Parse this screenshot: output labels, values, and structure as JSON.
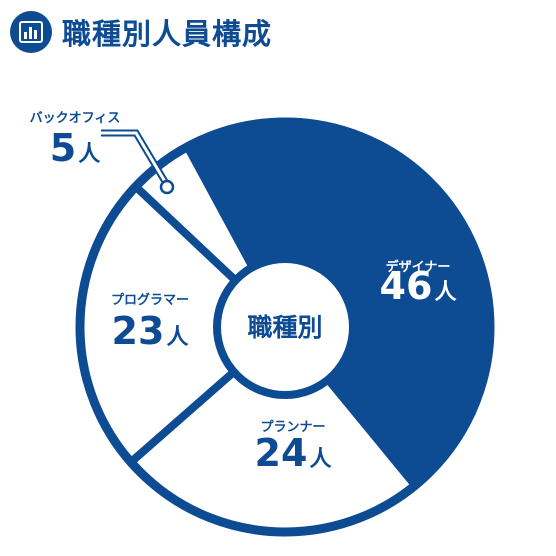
{
  "title": "職種別人員構成",
  "colors": {
    "primary": "#0d4b93",
    "background": "#ffffff"
  },
  "header_icon": "bar-chart-icon",
  "chart_data": {
    "type": "pie",
    "center_label": "職種別",
    "unit": "人",
    "categories": [
      "デザイナー",
      "プランナー",
      "プログラマー",
      "バックオフィス"
    ],
    "values": [
      46,
      24,
      23,
      5
    ],
    "highlighted": [
      "デザイナー"
    ]
  }
}
